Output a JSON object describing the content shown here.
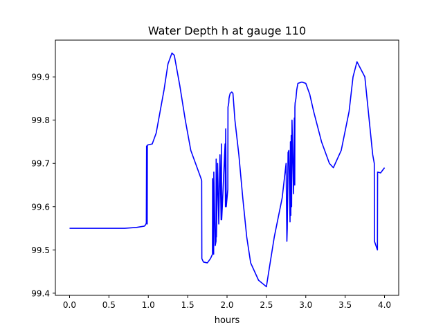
{
  "chart_data": {
    "type": "line",
    "title": "Water Depth h at gauge 110",
    "xlabel": "hours",
    "ylabel": "",
    "xlim": [
      -0.18,
      4.18
    ],
    "ylim": [
      99.395,
      99.985
    ],
    "xticks": [
      0.0,
      0.5,
      1.0,
      1.5,
      2.0,
      2.5,
      3.0,
      3.5,
      4.0
    ],
    "xtick_labels": [
      "0.0",
      "0.5",
      "1.0",
      "1.5",
      "2.0",
      "2.5",
      "3.0",
      "3.5",
      "4.0"
    ],
    "yticks": [
      99.4,
      99.5,
      99.6,
      99.7,
      99.8,
      99.9
    ],
    "ytick_labels": [
      "99.4",
      "99.5",
      "99.6",
      "99.7",
      "99.8",
      "99.9"
    ],
    "grid": false,
    "legend": "none",
    "colors": {
      "series": "#0000ff",
      "axes": "#000000",
      "background": "#ffffff"
    },
    "series": [
      {
        "x": [
          0.0,
          0.3,
          0.5,
          0.7,
          0.85,
          0.95,
          0.965,
          0.975,
          0.978,
          0.982,
          0.984,
          0.986,
          0.988,
          1.0,
          1.05,
          1.1,
          1.15,
          1.2,
          1.25,
          1.3,
          1.33,
          1.4,
          1.47,
          1.54,
          1.6,
          1.67,
          1.678,
          1.68,
          1.7,
          1.75,
          1.79,
          1.815,
          1.817,
          1.83,
          1.832,
          1.85,
          1.86,
          1.862,
          1.865,
          1.88,
          1.895,
          1.91,
          1.925,
          1.928,
          1.932,
          1.94,
          1.975,
          1.98,
          1.983,
          1.99,
          2.0,
          2.01,
          2.012,
          2.022,
          2.025,
          2.03,
          2.04,
          2.06,
          2.075,
          2.08,
          2.1,
          2.15,
          2.2,
          2.25,
          2.3,
          2.4,
          2.5,
          2.53,
          2.6,
          2.7,
          2.75,
          2.76,
          2.765,
          2.775,
          2.785,
          2.8,
          2.805,
          2.81,
          2.815,
          2.82,
          2.825,
          2.845,
          2.855,
          2.86,
          2.862,
          2.865,
          2.875,
          2.88,
          2.885,
          2.9,
          2.95,
          3.0,
          3.05,
          3.1,
          3.2,
          3.3,
          3.35,
          3.45,
          3.55,
          3.6,
          3.65,
          3.75,
          3.85,
          3.87,
          3.872,
          3.91,
          3.912,
          3.95,
          4.0
        ],
        "y": [
          99.55,
          99.55,
          99.55,
          99.55,
          99.552,
          99.555,
          99.558,
          99.562,
          99.74,
          99.74,
          99.56,
          99.56,
          99.742,
          99.743,
          99.745,
          99.77,
          99.82,
          99.87,
          99.93,
          99.955,
          99.95,
          99.88,
          99.8,
          99.73,
          99.7,
          99.665,
          99.66,
          99.48,
          99.472,
          99.47,
          99.48,
          99.49,
          99.665,
          99.49,
          99.68,
          99.51,
          99.52,
          99.71,
          99.53,
          99.7,
          99.56,
          99.72,
          99.57,
          99.745,
          99.57,
          99.6,
          99.745,
          99.6,
          99.78,
          99.6,
          99.62,
          99.64,
          99.83,
          99.84,
          99.85,
          99.855,
          99.862,
          99.865,
          99.862,
          99.85,
          99.8,
          99.72,
          99.62,
          99.53,
          99.47,
          99.43,
          99.415,
          99.45,
          99.53,
          99.62,
          99.7,
          99.52,
          99.55,
          99.725,
          99.73,
          99.565,
          99.75,
          99.58,
          99.765,
          99.6,
          99.8,
          99.63,
          99.805,
          99.65,
          99.83,
          99.84,
          99.85,
          99.86,
          99.87,
          99.885,
          99.888,
          99.885,
          99.86,
          99.82,
          99.75,
          99.7,
          99.69,
          99.73,
          99.82,
          99.9,
          99.935,
          99.9,
          99.72,
          99.7,
          99.52,
          99.5,
          99.68,
          99.678,
          99.69
        ]
      }
    ]
  }
}
